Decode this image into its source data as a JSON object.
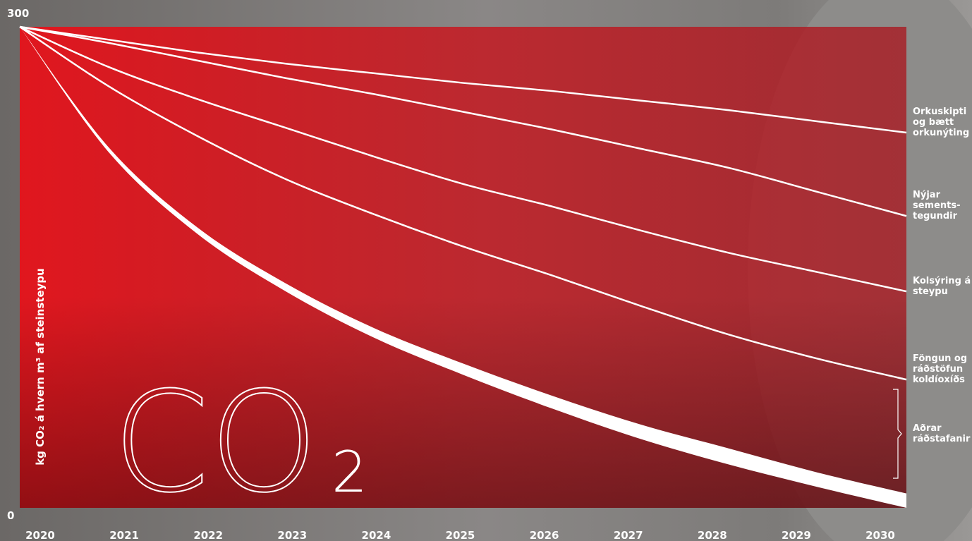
{
  "chart_data": {
    "type": "line",
    "y_label": "kg CO₂ á hvern m³ af steinsteypu",
    "annotation": {
      "main": "CO",
      "sub": "2"
    },
    "x": [
      2020,
      2021,
      2022,
      2023,
      2024,
      2025,
      2026,
      2027,
      2028,
      2029,
      2030
    ],
    "xlim": [
      2020,
      2030
    ],
    "xticks": [
      2020,
      2021,
      2022,
      2023,
      2024,
      2025,
      2026,
      2027,
      2028,
      2029,
      2030
    ],
    "ylim": [
      0,
      300
    ],
    "yticks": [
      0,
      300
    ],
    "series": [
      {
        "name": "Orkuskipti og bætt orkunýting",
        "color": "#ffffff",
        "values": [
          300,
          292,
          284,
          277,
          271,
          265,
          260,
          254,
          248,
          241,
          234
        ]
      },
      {
        "name": "Nýjar sements-tegundir",
        "color": "#ffffff",
        "values": [
          300,
          290,
          279,
          268,
          258,
          247,
          236,
          224,
          212,
          197,
          182
        ]
      },
      {
        "name": "Kolsýring á steypu",
        "color": "#ffffff",
        "values": [
          300,
          275,
          255,
          237,
          219,
          202,
          188,
          173,
          159,
          147,
          135
        ]
      },
      {
        "name": "Föngun og ráðstöfun koldíoxíðs",
        "color": "#ffffff",
        "values": [
          300,
          263,
          232,
          205,
          183,
          163,
          145,
          126,
          108,
          93,
          80
        ]
      },
      {
        "name": "Aðrar ráðstafanir",
        "color": "#ffffff",
        "values": [
          300,
          225,
          175,
          140,
          112,
          90,
          70,
          52,
          37,
          22,
          9
        ],
        "lower": [
          300,
          222,
          171,
          135,
          106,
          83,
          62,
          43,
          27,
          13,
          0
        ]
      }
    ]
  }
}
